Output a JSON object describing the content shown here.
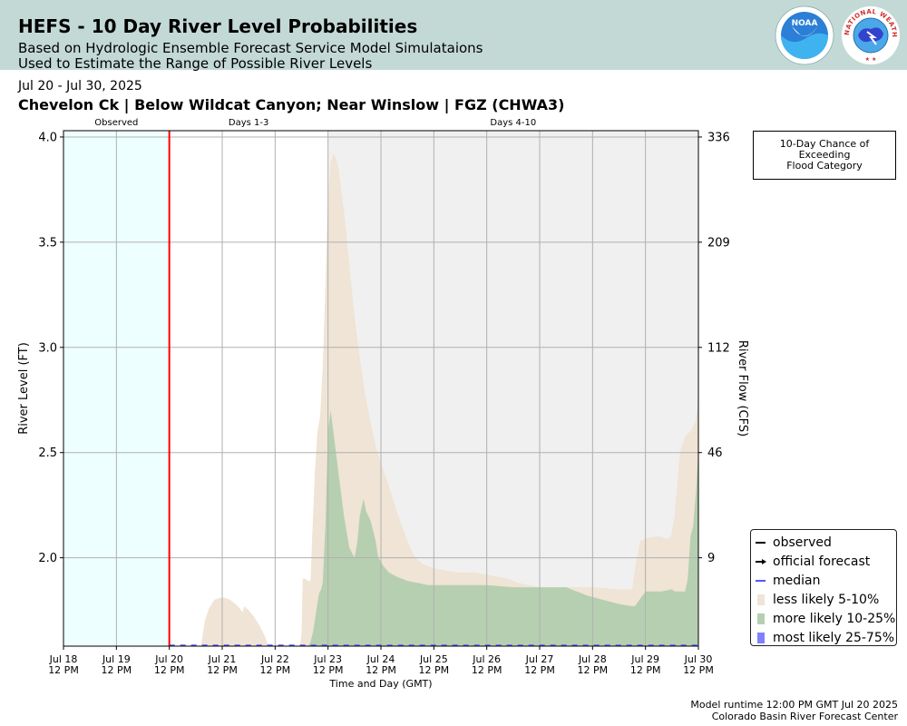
{
  "header": {
    "title": "HEFS - 10 Day River Level Probabilities",
    "subtitle_1": "Based on Hydrologic Ensemble Forecast Service Model Simulataions",
    "subtitle_2": "Used to Estimate the Range of Possible River Levels"
  },
  "logos": {
    "noaa_text": "NOAA",
    "nws_text": "NATIONAL WEATHER SERVICE"
  },
  "date_range": "Jul 20 - Jul 30, 2025",
  "station_title": "Chevelon Ck | Below Wildcat Canyon; Near Winslow | FGZ (CHWA3)",
  "flood_box": {
    "line1": "10-Day Chance of",
    "line2": "Exceeding",
    "line3": "Flood Category"
  },
  "legend": [
    {
      "label": "observed",
      "color": "#000000",
      "kind": "line"
    },
    {
      "label": "official forecast",
      "color": "#000000",
      "kind": "arrow"
    },
    {
      "label": "median",
      "color": "#5555ff",
      "kind": "line"
    },
    {
      "label": "less likely 5-10%",
      "color": "#efe4d5",
      "kind": "patch"
    },
    {
      "label": "more likely 10-25%",
      "color": "#b6cfb0",
      "kind": "patch"
    },
    {
      "label": "most likely 25-75%",
      "color": "#8080ff",
      "kind": "patch"
    }
  ],
  "footer": {
    "line1": "Model runtime 12:00 PM GMT Jul 20 2025",
    "line2": "Colorado Basin River Forecast Center"
  },
  "colors": {
    "header_bg": "#c3d9d6",
    "observed_bg": "#eeffff",
    "days410_bg": "#f0f0f0",
    "now_line": "#ff0000",
    "band_5_10": "#efe4d5",
    "band_10_25": "#b6cfb0",
    "median": "#5555ff",
    "grid": "#b0b0b0"
  },
  "chart_data": {
    "type": "area",
    "xlabel": "Time and Day (GMT)",
    "ylabel": "River Level (FT)",
    "y2label": "River Flow (CFS)",
    "x_range_days": [
      0,
      12
    ],
    "ylim": [
      1.58,
      4.03
    ],
    "x_ticks": [
      {
        "day": 0,
        "l1": "Jul 18",
        "l2": "12 PM"
      },
      {
        "day": 1,
        "l1": "Jul 19",
        "l2": "12 PM"
      },
      {
        "day": 2,
        "l1": "Jul 20",
        "l2": "12 PM"
      },
      {
        "day": 3,
        "l1": "Jul 21",
        "l2": "12 PM"
      },
      {
        "day": 4,
        "l1": "Jul 22",
        "l2": "12 PM"
      },
      {
        "day": 5,
        "l1": "Jul 23",
        "l2": "12 PM"
      },
      {
        "day": 6,
        "l1": "Jul 24",
        "l2": "12 PM"
      },
      {
        "day": 7,
        "l1": "Jul 25",
        "l2": "12 PM"
      },
      {
        "day": 8,
        "l1": "Jul 26",
        "l2": "12 PM"
      },
      {
        "day": 9,
        "l1": "Jul 27",
        "l2": "12 PM"
      },
      {
        "day": 10,
        "l1": "Jul 28",
        "l2": "12 PM"
      },
      {
        "day": 11,
        "l1": "Jul 29",
        "l2": "12 PM"
      },
      {
        "day": 12,
        "l1": "Jul 30",
        "l2": "12 PM"
      }
    ],
    "y_ticks": [
      2.0,
      2.5,
      3.0,
      3.5,
      4.0
    ],
    "y2_ticks": [
      {
        "level": 2.0,
        "label": "9"
      },
      {
        "level": 2.5,
        "label": "46"
      },
      {
        "level": 3.0,
        "label": "112"
      },
      {
        "level": 3.5,
        "label": "209"
      },
      {
        "level": 4.0,
        "label": "336"
      }
    ],
    "regions": [
      {
        "label": "Observed",
        "start": 0,
        "end": 2
      },
      {
        "label": "Days 1-3",
        "start": 2,
        "end": 5
      },
      {
        "label": "Days 4-10",
        "start": 5,
        "end": 12
      }
    ],
    "now_day": 2,
    "series": [
      {
        "name": "less likely 5-10%",
        "x": [
          2.6,
          2.67,
          2.75,
          2.85,
          2.95,
          3.05,
          3.15,
          3.25,
          3.33,
          3.38,
          3.42,
          3.5,
          3.6,
          3.7,
          3.8,
          3.87,
          3.92,
          4.47,
          4.5,
          4.52,
          4.57,
          4.62,
          4.67,
          4.7,
          4.75,
          4.8,
          4.85,
          4.9,
          4.95,
          5.0,
          5.05,
          5.1,
          5.15,
          5.2,
          5.3,
          5.4,
          5.5,
          5.6,
          5.7,
          5.8,
          5.9,
          6.0,
          6.1,
          6.2,
          6.3,
          6.4,
          6.5,
          6.6,
          6.7,
          6.8,
          6.9,
          7.0,
          7.2,
          7.5,
          7.8,
          8.0,
          8.2,
          8.4,
          8.6,
          8.8,
          9.0,
          9.5,
          10.0,
          10.5,
          10.75,
          10.8,
          10.9,
          11.0,
          11.15,
          11.3,
          11.38,
          11.42,
          11.48,
          11.55,
          11.65,
          11.75,
          11.85,
          11.95,
          12.0
        ],
        "y": [
          1.58,
          1.7,
          1.76,
          1.8,
          1.81,
          1.81,
          1.8,
          1.78,
          1.76,
          1.74,
          1.77,
          1.75,
          1.72,
          1.68,
          1.63,
          1.58,
          1.58,
          1.58,
          1.64,
          1.9,
          1.9,
          1.89,
          1.89,
          2.1,
          2.4,
          2.6,
          2.67,
          2.9,
          3.3,
          3.72,
          3.88,
          3.92,
          3.9,
          3.85,
          3.65,
          3.4,
          3.15,
          2.95,
          2.78,
          2.65,
          2.53,
          2.45,
          2.38,
          2.3,
          2.22,
          2.15,
          2.08,
          2.02,
          1.99,
          1.97,
          1.96,
          1.95,
          1.94,
          1.93,
          1.93,
          1.92,
          1.91,
          1.9,
          1.88,
          1.87,
          1.86,
          1.86,
          1.86,
          1.85,
          1.85,
          1.95,
          2.08,
          2.09,
          2.1,
          2.1,
          2.09,
          2.09,
          2.1,
          2.2,
          2.5,
          2.58,
          2.6,
          2.65,
          2.75
        ]
      },
      {
        "name": "more likely 10-25%",
        "x": [
          4.62,
          4.67,
          4.72,
          4.78,
          4.83,
          4.87,
          4.9,
          4.95,
          5.0,
          5.05,
          5.1,
          5.2,
          5.3,
          5.4,
          5.5,
          5.55,
          5.6,
          5.67,
          5.72,
          5.8,
          5.9,
          5.95,
          6.05,
          6.15,
          6.3,
          6.5,
          6.7,
          6.9,
          7.2,
          7.5,
          8.0,
          8.5,
          9.0,
          9.5,
          9.8,
          9.9,
          10.5,
          10.75,
          10.8,
          11.0,
          11.3,
          11.5,
          11.55,
          11.7,
          11.75,
          11.8,
          11.85,
          11.9,
          11.95,
          12.0
        ],
        "y": [
          1.58,
          1.6,
          1.65,
          1.75,
          1.83,
          1.85,
          1.88,
          2.15,
          2.6,
          2.7,
          2.6,
          2.4,
          2.2,
          2.05,
          2.0,
          2.07,
          2.2,
          2.28,
          2.22,
          2.18,
          2.08,
          2.0,
          1.96,
          1.93,
          1.91,
          1.89,
          1.88,
          1.87,
          1.87,
          1.87,
          1.87,
          1.86,
          1.86,
          1.86,
          1.83,
          1.82,
          1.78,
          1.77,
          1.77,
          1.84,
          1.84,
          1.85,
          1.84,
          1.84,
          1.84,
          1.9,
          2.1,
          2.15,
          2.3,
          2.5
        ]
      },
      {
        "name": "median",
        "x": [
          2,
          12
        ],
        "y": [
          1.58,
          1.58
        ]
      }
    ]
  }
}
